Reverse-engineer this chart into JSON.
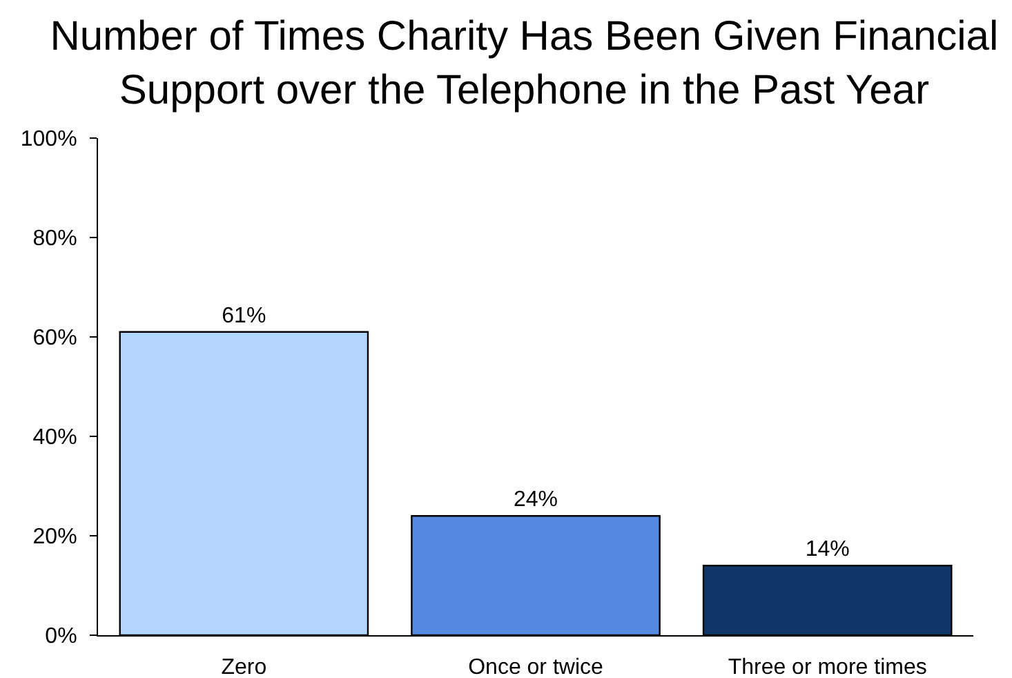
{
  "chart_data": {
    "type": "bar",
    "title": "Number of Times Charity Has Been Given Financial\nSupport over the Telephone in the Past Year",
    "categories": [
      "Zero",
      "Once or twice",
      "Three or more times"
    ],
    "values": [
      61,
      24,
      14
    ],
    "colors": [
      "#b3d4fc",
      "#558ae0",
      "#12366a"
    ],
    "value_labels": [
      "61%",
      "24%",
      "14%"
    ],
    "ylim": [
      0,
      100
    ],
    "yticks": [
      {
        "value": 0,
        "label": "0%"
      },
      {
        "value": 20,
        "label": "20%"
      },
      {
        "value": 40,
        "label": "40%"
      },
      {
        "value": 60,
        "label": "60%"
      },
      {
        "value": 80,
        "label": "80%"
      },
      {
        "value": 100,
        "label": "100%"
      }
    ]
  }
}
